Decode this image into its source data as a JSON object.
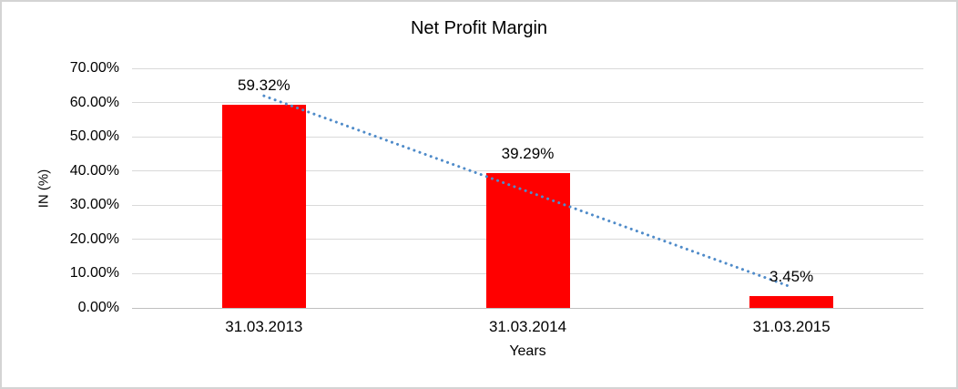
{
  "chart_data": {
    "type": "bar",
    "title": "Net Profit Margin",
    "xlabel": "Years",
    "ylabel": "IN (%)",
    "categories": [
      "31.03.2013",
      "31.03.2014",
      "31.03.2015"
    ],
    "values": [
      59.32,
      39.29,
      3.45
    ],
    "data_labels": [
      "59.32%",
      "39.29%",
      "3.45%"
    ],
    "ylim": [
      0,
      70
    ],
    "ytick_step": 10,
    "ytick_labels": [
      "0.00%",
      "10.00%",
      "20.00%",
      "30.00%",
      "40.00%",
      "50.00%",
      "60.00%",
      "70.00%"
    ],
    "grid": true,
    "legend": "none",
    "bar_color": "#FF0000",
    "gridline_color": "#D9D9D9",
    "axis_line_color": "#BFBFBF",
    "text_color": "#000000",
    "trendline": {
      "type": "linear",
      "style": "dotted",
      "color": "#4F8BC9"
    }
  }
}
